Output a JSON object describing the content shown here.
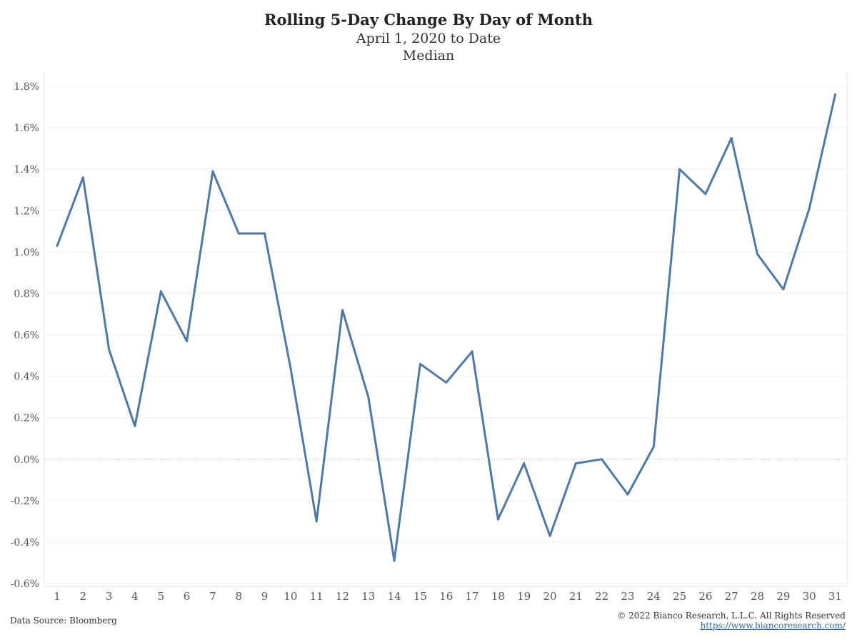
{
  "chart_data": {
    "type": "line",
    "title": "Rolling 5-Day Change By Day of Month",
    "subtitle": "April 1, 2020 to Date",
    "subtitle2": "Median",
    "x": [
      1,
      2,
      3,
      4,
      5,
      6,
      7,
      8,
      9,
      10,
      11,
      12,
      13,
      14,
      15,
      16,
      17,
      18,
      19,
      20,
      21,
      22,
      23,
      24,
      25,
      26,
      27,
      28,
      29,
      30,
      31
    ],
    "series": [
      {
        "values": [
          1.03,
          1.36,
          0.53,
          0.16,
          0.81,
          0.57,
          1.39,
          1.09,
          1.09,
          0.44,
          -0.3,
          0.72,
          0.3,
          -0.49,
          0.46,
          0.37,
          0.52,
          -0.29,
          -0.02,
          -0.37,
          -0.02,
          0.0,
          -0.17,
          0.06,
          1.4,
          1.28,
          1.55,
          0.99,
          0.82,
          1.21,
          1.76
        ],
        "color": "#4e79a7"
      }
    ],
    "ylim": [
      -0.6,
      1.8
    ],
    "y_ticks": [
      "-0.6%",
      "-0.4%",
      "-0.2%",
      "0.0%",
      "0.2%",
      "0.4%",
      "0.6%",
      "0.8%",
      "1.0%",
      "1.2%",
      "1.4%",
      "1.6%",
      "1.8%"
    ],
    "y_unit": "%",
    "grid": true,
    "xlabel": "",
    "ylabel": ""
  },
  "footer": {
    "source": "Data Source: Bloomberg",
    "copyright": "© 2022 Bianco Research, L.L.C. All Rights Reserved",
    "url": "https://www.biancoresearch.com/"
  }
}
